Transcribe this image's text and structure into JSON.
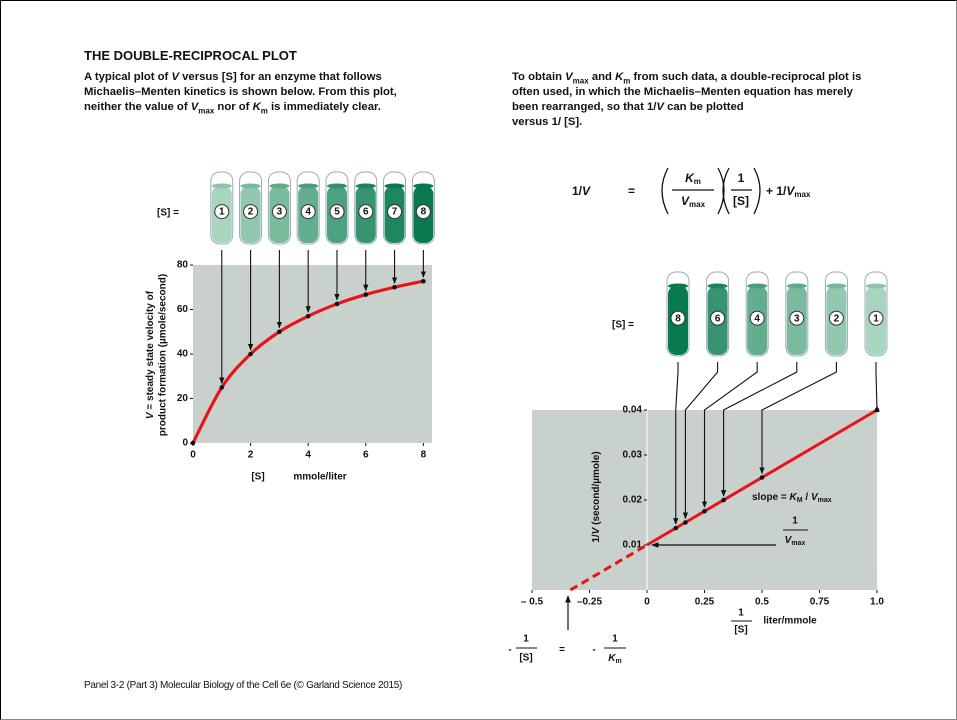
{
  "title": "THE DOUBLE-RECIPROCAL PLOT",
  "left_text": [
    "A typical plot of ",
    "V",
    " versus [S] for an enzyme that follows",
    "Michaelis–Menten kinetics is shown below. From this plot,",
    "neither the value of ",
    "V",
    "max",
    " nor of ",
    "K",
    "m",
    " is immediately clear."
  ],
  "right_text": [
    "To obtain ",
    "V",
    "max",
    " and ",
    "K",
    "m",
    " from such data, a double-reciprocal plot is",
    "often used, in which the Michaelis–Menten equation has merely",
    "been rearranged, so that 1/",
    "V",
    " can be plotted",
    "versus 1/ [S]."
  ],
  "equation": {
    "lhs_a": "1/",
    "lhs_v": "V",
    "eq": "=",
    "k": "K",
    "k_sub": "m",
    "v": "V",
    "v_sub": "max",
    "one": "1",
    "s": "[S]",
    "plus": "+ 1/",
    "v2": "V",
    "v2_sub": "max"
  },
  "caption": "Panel 3-2 (Part 3)  Molecular Biology of the Cell 6e (© Garland Science 2015)",
  "chart_data": [
    {
      "type": "line",
      "y_label": [
        "V",
        " = steady state velocity of",
        "product formation (µmole/second)"
      ],
      "x_label": "[S]",
      "x_unit": "mmole/liter",
      "tube_label": "[S] =",
      "x": [
        0,
        1,
        2,
        3,
        4,
        5,
        6,
        7,
        8
      ],
      "values": [
        0,
        25,
        40,
        50,
        57,
        62.5,
        66.7,
        70,
        72.7
      ],
      "color": "#e8141c",
      "xlim": [
        0,
        8.3
      ],
      "ylim": [
        0,
        80
      ],
      "xticks": [
        0,
        2,
        4,
        6,
        8
      ],
      "yticks": [
        0,
        20,
        40,
        60,
        80
      ]
    },
    {
      "type": "line",
      "y_label": [
        "1/",
        "V",
        " (second/µmole)"
      ],
      "x_label": [
        "1",
        "[S]"
      ],
      "x_unit": "liter/mmole",
      "tube_label": "[S] =",
      "concentrations": [
        8,
        6,
        4,
        3,
        2,
        1
      ],
      "x": [
        0.125,
        0.167,
        0.25,
        0.333,
        0.5,
        1.0
      ],
      "values": [
        0.01375,
        0.015,
        0.0175,
        0.02,
        0.025,
        0.04
      ],
      "extrapolation": {
        "x": [
          -0.333,
          0
        ],
        "values": [
          0,
          0.01
        ]
      },
      "fit": {
        "x": [
          0,
          1.0
        ],
        "values": [
          0.01,
          0.04
        ]
      },
      "color": "#e8141c",
      "xlim": [
        -0.5,
        1.0
      ],
      "ylim": [
        0,
        0.04
      ],
      "xticks": [
        {
          "value": -0.5,
          "label": "– 0.5"
        },
        {
          "value": -0.25,
          "label": "–0.25"
        },
        0,
        0.25,
        0.5,
        0.75,
        {
          "value": 1.0,
          "label": "1.0"
        }
      ],
      "yticks": [
        0.01,
        0.02,
        0.03,
        0.04
      ],
      "slope_label": [
        "slope = ",
        "K",
        "M",
        " / ",
        "V",
        "max"
      ],
      "vmax_label": [
        "1",
        "V",
        "max"
      ],
      "km_label": [
        "-",
        "1",
        "[S]",
        "=",
        "-",
        "1",
        "K",
        "m"
      ]
    }
  ]
}
